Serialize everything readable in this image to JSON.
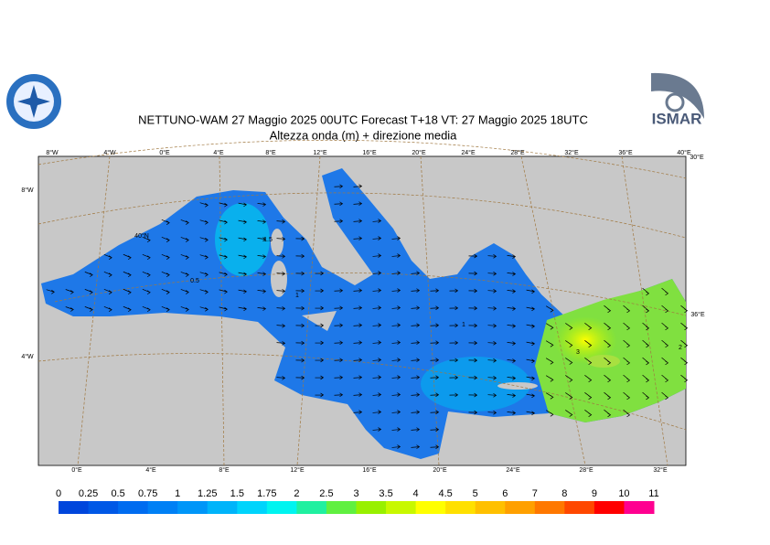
{
  "header": {
    "title": "NETTUNO-WAM  27   Maggio  2025 00UTC Forecast T+18 VT: 27   Maggio  2025 18UTC",
    "subtitle": "Altezza onda (m) + direzione media",
    "logo_text": "ISMAR"
  },
  "map": {
    "top_labels": [
      "8°W",
      "4°W",
      "0°E",
      "4°E",
      "8°E",
      "12°E",
      "16°E",
      "20°E",
      "24°E",
      "28°E",
      "32°E",
      "36°E",
      "40°E"
    ],
    "bottom_labels": [
      "0°E",
      "4°E",
      "8°E",
      "12°E",
      "16°E",
      "20°E",
      "24°E",
      "28°E",
      "32°E"
    ],
    "left_labels": [
      "8°W",
      "4°W"
    ],
    "right_labels": [
      "30°E",
      "36°E"
    ],
    "lat_label": "40°N",
    "contour_labels": [
      "1.5",
      "0.5",
      "1",
      "1",
      "3",
      "2"
    ]
  },
  "legend": {
    "labels": [
      0,
      0.25,
      0.5,
      0.75,
      1,
      1.25,
      1.5,
      1.75,
      2,
      2.5,
      3,
      3.5,
      4,
      4.5,
      5,
      6,
      7,
      8,
      9,
      10,
      11
    ],
    "colors": [
      "#0046dc",
      "#0058e6",
      "#006cf0",
      "#0080f5",
      "#0096f8",
      "#00b4fa",
      "#00d4fc",
      "#00f4f0",
      "#20f0a0",
      "#60f040",
      "#98f000",
      "#c8f800",
      "#ffff00",
      "#ffe000",
      "#ffc000",
      "#ffa000",
      "#ff7800",
      "#ff4800",
      "#ff0000",
      "#ff0090"
    ]
  }
}
